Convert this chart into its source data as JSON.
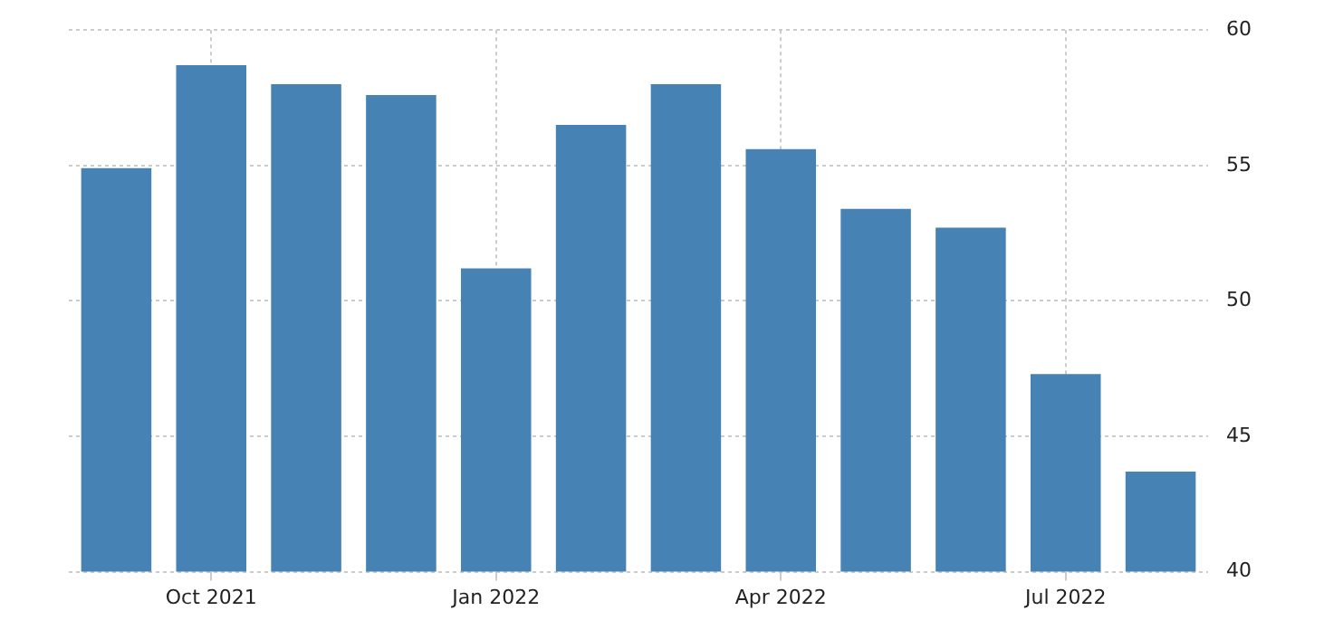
{
  "chart_data": {
    "type": "bar",
    "categories": [
      null,
      "Oct 2021",
      null,
      null,
      "Jan 2022",
      null,
      null,
      "Apr 2022",
      null,
      null,
      "Jul 2022",
      null
    ],
    "values": [
      54.9,
      58.7,
      58.0,
      57.6,
      51.2,
      56.5,
      58.0,
      55.6,
      53.4,
      52.7,
      47.3,
      43.7
    ],
    "color": "#4682b4",
    "ylim": [
      40,
      60
    ],
    "yticks": [
      40,
      45,
      50,
      55,
      60
    ],
    "grid": true,
    "legend": false
  }
}
